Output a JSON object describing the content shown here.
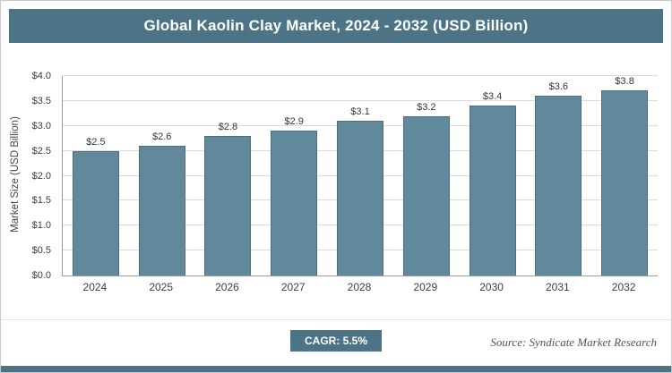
{
  "header": {
    "title": "Global Kaolin Clay Market, 2024 - 2032 (USD Billion)"
  },
  "colors": {
    "accent": "#4d7486",
    "bar_fill": "#62899b",
    "bar_border": "#4c6f80",
    "grid": "#dcdcdc"
  },
  "footer": {
    "cagr_label": "CAGR: 5.5%",
    "source": "Source: Syndicate Market Research"
  },
  "chart_data": {
    "type": "bar",
    "title": "Global Kaolin Clay Market, 2024 - 2032 (USD Billion)",
    "categories": [
      "2024",
      "2025",
      "2026",
      "2027",
      "2028",
      "2029",
      "2030",
      "2031",
      "2032"
    ],
    "values": [
      2.5,
      2.6,
      2.8,
      2.9,
      3.1,
      3.2,
      3.4,
      3.6,
      3.8
    ],
    "bar_labels": [
      "$2.5",
      "$2.6",
      "$2.8",
      "$2.9",
      "$3.1",
      "$3.2",
      "$3.4",
      "$3.6",
      "$3.8"
    ],
    "xlabel": "",
    "ylabel": "Market Size (USD Billion)",
    "ylim": [
      0,
      4.0
    ],
    "y_ticks": [
      "$0.0",
      "$0.5",
      "$1.0",
      "$1.5",
      "$2.0",
      "$2.5",
      "$3.0",
      "$3.5",
      "$4.0"
    ],
    "grid": true,
    "legend": false
  }
}
